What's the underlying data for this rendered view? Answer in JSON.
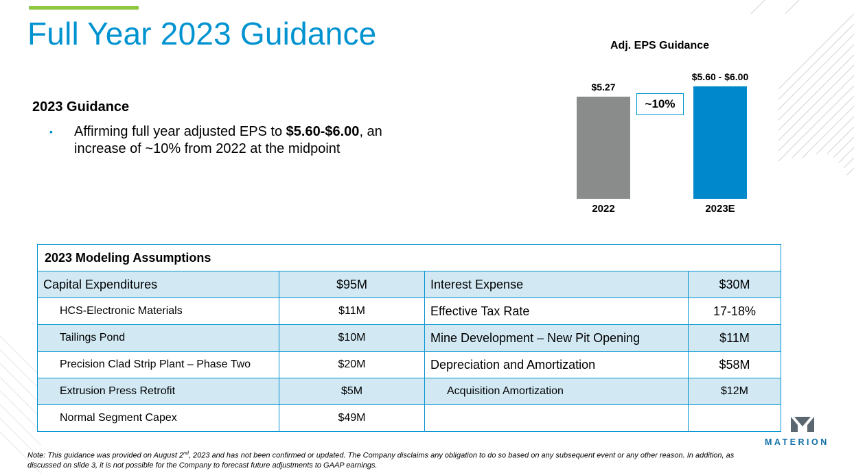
{
  "title": "Full Year 2023 Guidance",
  "guidance": {
    "heading": "2023 Guidance",
    "bullet_prefix": "Affirming full year adjusted EPS to ",
    "bullet_bold": "$5.60-$6.00",
    "bullet_suffix": ", an increase of ~10% from 2022 at the midpoint"
  },
  "chart_data": {
    "type": "bar",
    "title": "Adj. EPS Guidance",
    "categories": [
      "2022",
      "2023E"
    ],
    "values": [
      5.27,
      5.8
    ],
    "value_labels": [
      "$5.27",
      "$5.60 - $6.00"
    ],
    "annotation": "~10%",
    "colors": [
      "#8a8c8c",
      "#0088cc"
    ],
    "ylim": [
      0,
      6.2
    ],
    "xlabel": "",
    "ylabel": ""
  },
  "table": {
    "title": "2023 Modeling Assumptions",
    "rows": [
      {
        "l1": "Capital Expenditures",
        "v1": "$95M",
        "l2": "Interest Expense",
        "v2": "$30M"
      },
      {
        "l1": "HCS-Electronic Materials",
        "v1": "$11M",
        "l2": "Effective Tax Rate",
        "v2": "17-18%"
      },
      {
        "l1": "Tailings Pond",
        "v1": "$10M",
        "l2": "Mine Development – New Pit Opening",
        "v2": "$11M"
      },
      {
        "l1": "Precision Clad Strip Plant – Phase Two",
        "v1": "$20M",
        "l2": "Depreciation and Amortization",
        "v2": "$58M"
      },
      {
        "l1": "Extrusion Press Retrofit",
        "v1": "$5M",
        "l2": "Acquisition Amortization",
        "v2": "$12M"
      },
      {
        "l1": "Normal Segment Capex",
        "v1": "$49M",
        "l2": "",
        "v2": ""
      }
    ]
  },
  "logo": {
    "text": "MATERION",
    "icon": "materion-logo-icon"
  },
  "note": {
    "pre": "Note: This guidance was provided on August 2",
    "sup": "nd",
    "post": ", 2023 and has not been confirmed or updated. The Company disclaims any obligation to do so based on any subsequent event or any other reason. In addition, as discussed on slide 3, it is not possible for the Company to forecast future adjustments to GAAP earnings."
  }
}
